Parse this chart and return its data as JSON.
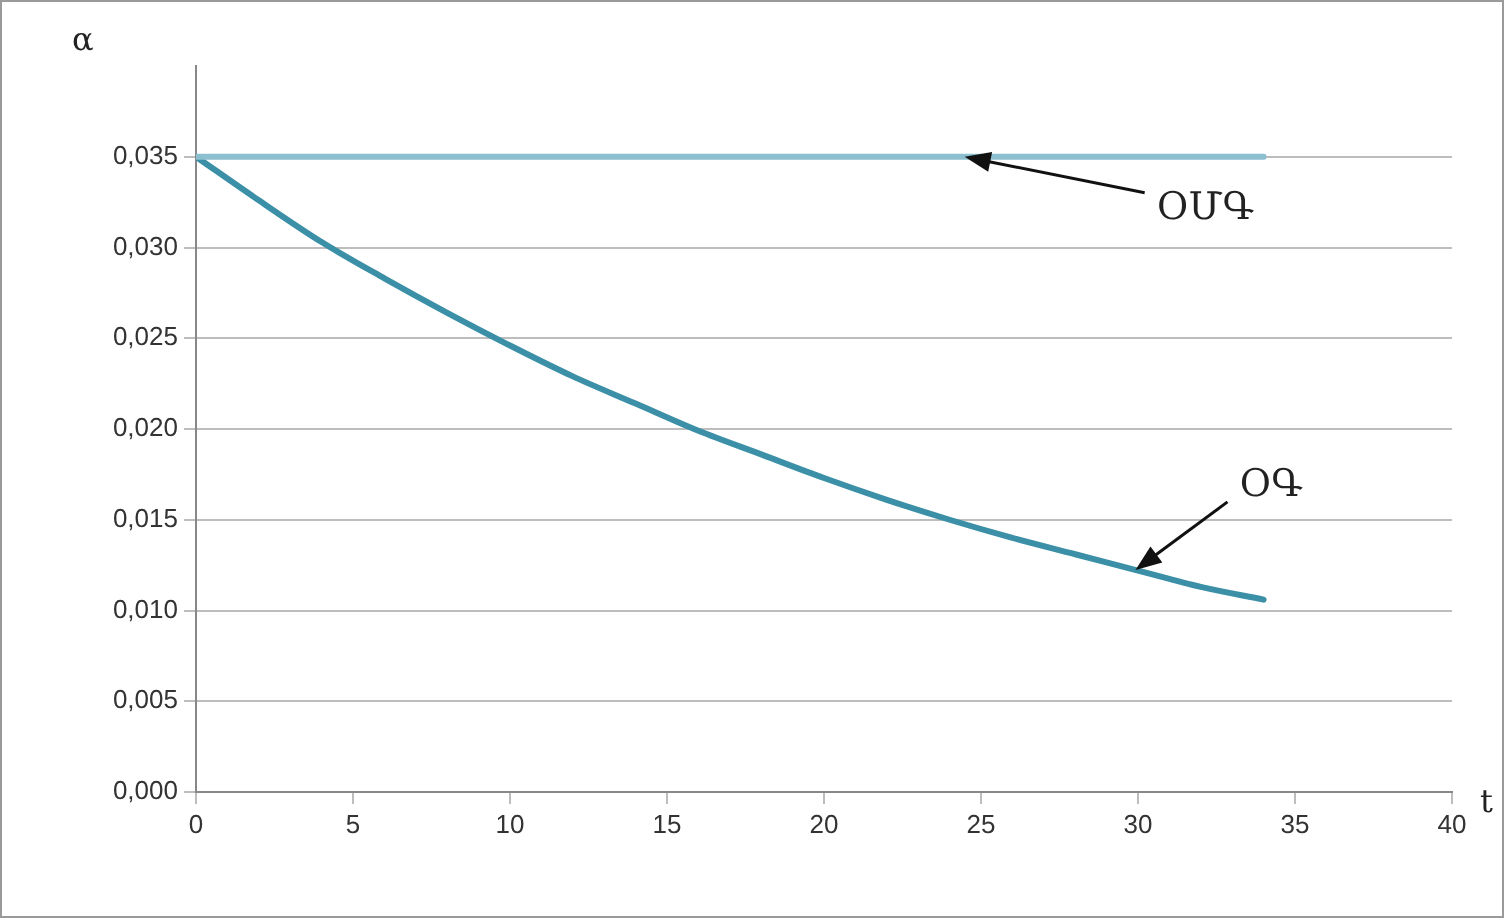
{
  "chart_data": {
    "type": "line",
    "xlabel": "t",
    "ylabel": "α",
    "xlim": [
      0,
      40
    ],
    "xticks": [
      0,
      5,
      10,
      15,
      20,
      25,
      30,
      35,
      40
    ],
    "ylim": [
      0,
      0.04
    ],
    "yticks": [
      {
        "value": 0,
        "label": "0,000"
      },
      {
        "value": 0.005,
        "label": "0,005"
      },
      {
        "value": 0.01,
        "label": "0,010"
      },
      {
        "value": 0.015,
        "label": "0,015"
      },
      {
        "value": 0.02,
        "label": "0,020"
      },
      {
        "value": 0.025,
        "label": "0,025"
      },
      {
        "value": 0.03,
        "label": "0,030"
      },
      {
        "value": 0.035,
        "label": "0,035"
      }
    ],
    "grid": "y",
    "legend": false,
    "marker": "none",
    "line_style": "solid",
    "series": [
      {
        "name": "ՕՄԳ",
        "color": "#8cbfcf",
        "x": [
          0,
          34
        ],
        "values": [
          0.035,
          0.035
        ]
      },
      {
        "name": "ՕԳ",
        "color": "#3b8fa6",
        "x": [
          0,
          2,
          4,
          6,
          8,
          10,
          12,
          14,
          16,
          18,
          20,
          22,
          24,
          26,
          28,
          30,
          32,
          34
        ],
        "values": [
          0.035,
          0.0326,
          0.0303,
          0.0283,
          0.0264,
          0.0246,
          0.0229,
          0.0214,
          0.0199,
          0.0186,
          0.0173,
          0.0161,
          0.015,
          0.014,
          0.0131,
          0.0122,
          0.0113,
          0.0106
        ]
      }
    ]
  }
}
